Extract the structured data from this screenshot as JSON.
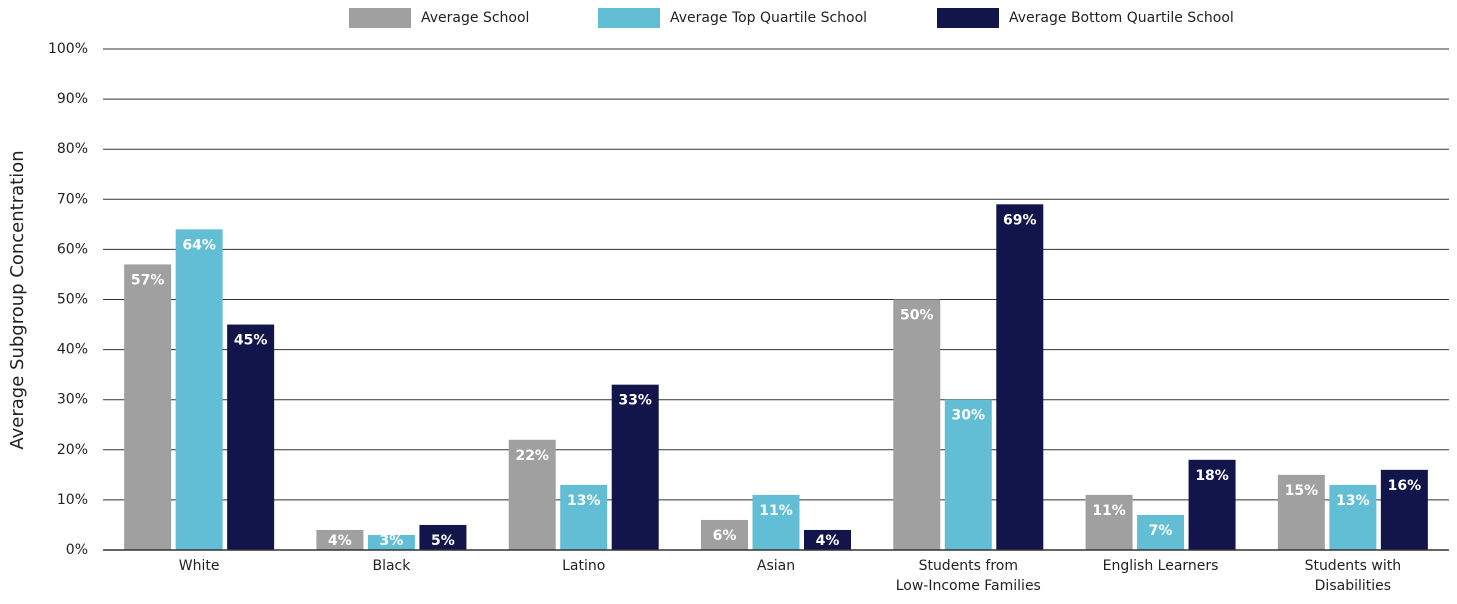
{
  "chart_data": {
    "type": "bar",
    "y_label": "Average Subgroup Concentration",
    "categories": [
      "White",
      "Black",
      "Latino",
      "Asian",
      "Students from\nLow-Income Families",
      "English Learners",
      "Students with\nDisabilities"
    ],
    "series": [
      {
        "name": "Average School",
        "color": "#a0a0a0",
        "values": [
          57,
          4,
          22,
          6,
          50,
          11,
          15
        ],
        "value_labels": [
          "57%",
          "4%",
          "22%",
          "6%",
          "50%",
          "11%",
          "15%"
        ]
      },
      {
        "name": "Average Top Quartile School",
        "color": "#62bed4",
        "values": [
          64,
          3,
          13,
          11,
          30,
          7,
          13
        ],
        "value_labels": [
          "64%",
          "3%",
          "13%",
          "11%",
          "30%",
          "7%",
          "13%"
        ]
      },
      {
        "name": "Average Bottom Quartile School",
        "color": "#12154a",
        "values": [
          45,
          5,
          33,
          4,
          69,
          18,
          16
        ],
        "value_labels": [
          "45%",
          "5%",
          "33%",
          "4%",
          "69%",
          "18%",
          "16%"
        ]
      }
    ],
    "ylim": [
      0,
      100
    ],
    "yticks": [
      {
        "value": 0,
        "label": "0%"
      },
      {
        "value": 10,
        "label": "10%"
      },
      {
        "value": 20,
        "label": "20%"
      },
      {
        "value": 30,
        "label": "30%"
      },
      {
        "value": 40,
        "label": "40%"
      },
      {
        "value": 50,
        "label": "50%"
      },
      {
        "value": 60,
        "label": "60%"
      },
      {
        "value": 70,
        "label": "70%"
      },
      {
        "value": 80,
        "label": "80%"
      },
      {
        "value": 90,
        "label": "90%"
      },
      {
        "value": 100,
        "label": "100%"
      }
    ],
    "grid": true,
    "legend": "top"
  }
}
